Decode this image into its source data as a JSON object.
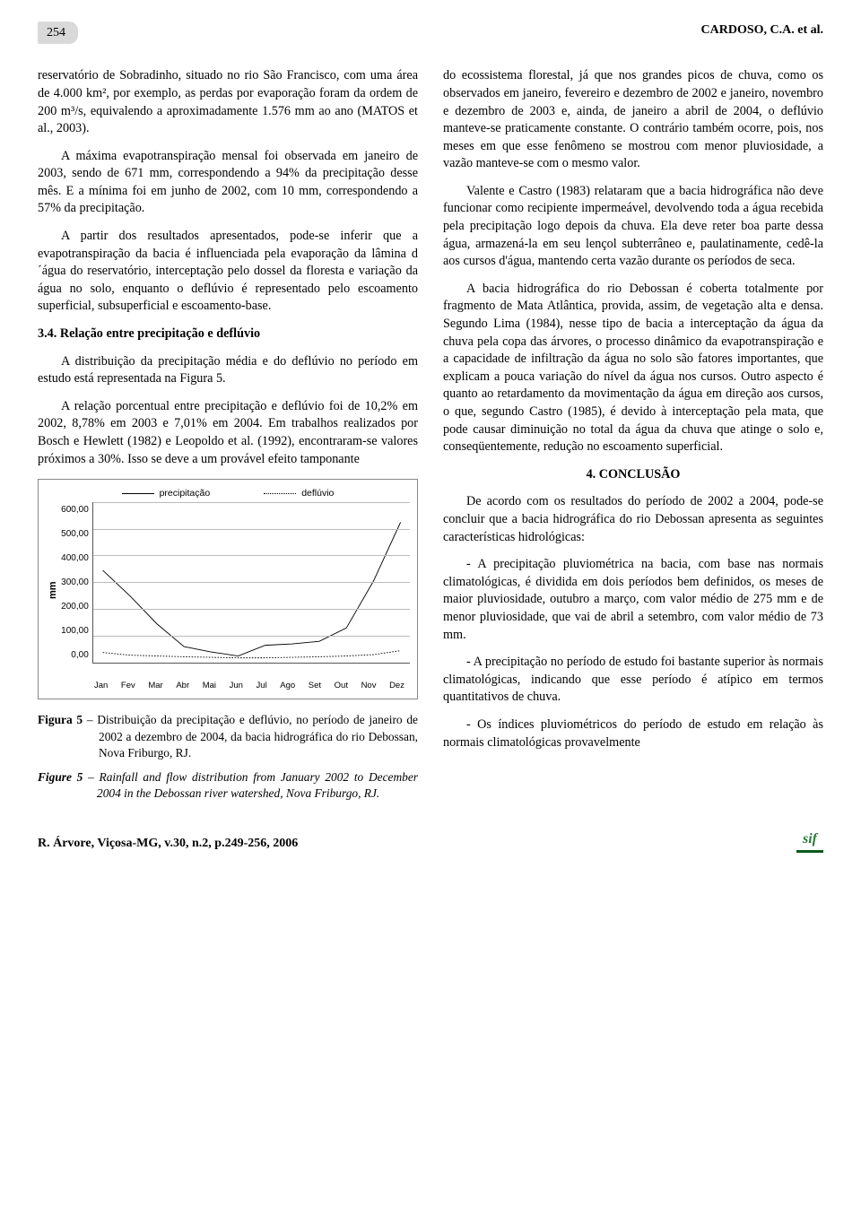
{
  "header": {
    "page_number": "254",
    "authors": "CARDOSO, C.A. et al."
  },
  "left_column": {
    "p1": "reservatório de Sobradinho, situado no rio São Francisco, com uma área de 4.000 km², por exemplo, as perdas por evaporação foram da ordem de 200 m³/s, equivalendo a aproximadamente 1.576 mm ao ano (MATOS et al., 2003).",
    "p2": "A máxima evapotranspiração mensal foi observada em janeiro de 2003, sendo de 671 mm, correspondendo a 94% da precipitação desse mês. E a mínima foi em junho de 2002, com 10 mm, correspondendo a 57% da precipitação.",
    "p3": "A partir dos resultados apresentados, pode-se inferir que a evapotranspiração da bacia é influenciada pela evaporação da lâmina d´água do reservatório, interceptação pelo dossel da floresta e variação da água no solo, enquanto o deflúvio é representado pelo escoamento superficial, subsuperficial e escoamento-base.",
    "heading34": "3.4. Relação entre precipitação e deflúvio",
    "p4": "A distribuição da precipitação média e do deflúvio no período em estudo está representada na Figura 5.",
    "p5": "A relação porcentual entre precipitação e deflúvio foi de 10,2% em 2002, 8,78% em 2003 e 7,01% em 2004. Em trabalhos realizados por Bosch e Hewlett (1982) e Leopoldo et al. (1992), encontraram-se valores próximos a 30%. Isso se deve a um provável efeito tamponante"
  },
  "chart": {
    "type": "line",
    "y_label": "mm",
    "y_ticks": [
      "600,00",
      "500,00",
      "400,00",
      "300,00",
      "200,00",
      "100,00",
      "0,00"
    ],
    "ylim": [
      0,
      600
    ],
    "x_ticks": [
      "Jan",
      "Fev",
      "Mar",
      "Abr",
      "Mai",
      "Jun",
      "Jul",
      "Ago",
      "Set",
      "Out",
      "Nov",
      "Dez"
    ],
    "legend": {
      "precip": "precipitação",
      "defluvio": "deflúvio"
    },
    "series": {
      "precip": [
        345,
        250,
        145,
        60,
        40,
        25,
        65,
        70,
        80,
        130,
        305,
        525
      ],
      "defluvio": [
        38,
        28,
        25,
        22,
        20,
        18,
        18,
        20,
        22,
        25,
        30,
        45
      ]
    },
    "colors": {
      "line": "#000000",
      "grid": "#bbbbbb",
      "border": "#888888",
      "background": "#ffffff"
    },
    "font_family": "Arial",
    "tick_fontsize": 10,
    "legend_fontsize": 10.5
  },
  "figure_caption": {
    "pt_label": "Figura 5",
    "pt_text": " – Distribuição da precipitação e deflúvio, no período de janeiro de 2002 a dezembro de 2004, da bacia hidrográfica do rio Debossan, Nova Friburgo, RJ.",
    "en_label": "Figure 5",
    "en_text": " – Rainfall and flow distribution from January 2002 to December 2004 in the Debossan river watershed, Nova Friburgo, RJ."
  },
  "right_column": {
    "p1": "do ecossistema florestal, já que nos grandes picos de chuva, como os observados em janeiro, fevereiro e dezembro de 2002 e janeiro, novembro e dezembro de 2003 e, ainda, de janeiro a abril de 2004, o deflúvio manteve-se praticamente constante. O contrário também ocorre, pois, nos meses em que esse fenômeno se mostrou com menor pluviosidade, a vazão manteve-se com o mesmo valor.",
    "p2": "Valente e Castro (1983) relataram que a bacia hidrográfica não deve funcionar como recipiente impermeável, devolvendo toda a água recebida pela precipitação logo depois da chuva. Ela deve reter boa parte dessa água, armazená-la em seu lençol subterrâneo e, paulatinamente, cedê-la aos cursos d'água, mantendo certa vazão durante os períodos de seca.",
    "p3": "A bacia hidrográfica do rio Debossan é coberta totalmente por fragmento de Mata Atlântica, provida, assim, de vegetação alta e densa. Segundo Lima (1984), nesse tipo de bacia a interceptação da água da chuva pela copa das árvores, o processo dinâmico da evapotranspiração e a capacidade de infiltração da água no solo são fatores importantes, que explicam a pouca variação do nível da água nos cursos. Outro aspecto é quanto ao retardamento da movimentação da água em direção aos cursos, o que, segundo Castro (1985), é devido à interceptação pela mata, que pode causar diminuição no total da água da chuva que atinge o solo e, conseqüentemente, redução no escoamento superficial.",
    "heading4": "4. CONCLUSÃO",
    "p4": "De acordo com os resultados do período de 2002 a 2004, pode-se concluir que a bacia hidrográfica do rio Debossan apresenta as seguintes características hidrológicas:",
    "p5": "- A precipitação pluviométrica na bacia, com base nas normais climatológicas, é dividida em dois períodos bem definidos, os meses de maior pluviosidade, outubro a março, com valor médio de 275 mm e de menor pluviosidade, que vai de abril a setembro, com valor médio de 73 mm.",
    "p6": "- A precipitação no período de estudo foi bastante superior às normais climatológicas, indicando que esse período é atípico em termos quantitativos de chuva.",
    "p7": "- Os índices pluviométricos do período de estudo em relação às normais climatológicas provavelmente"
  },
  "footer": {
    "citation": "R. Árvore, Viçosa-MG, v.30, n.2, p.249-256, 2006",
    "logo_text": "sif"
  }
}
